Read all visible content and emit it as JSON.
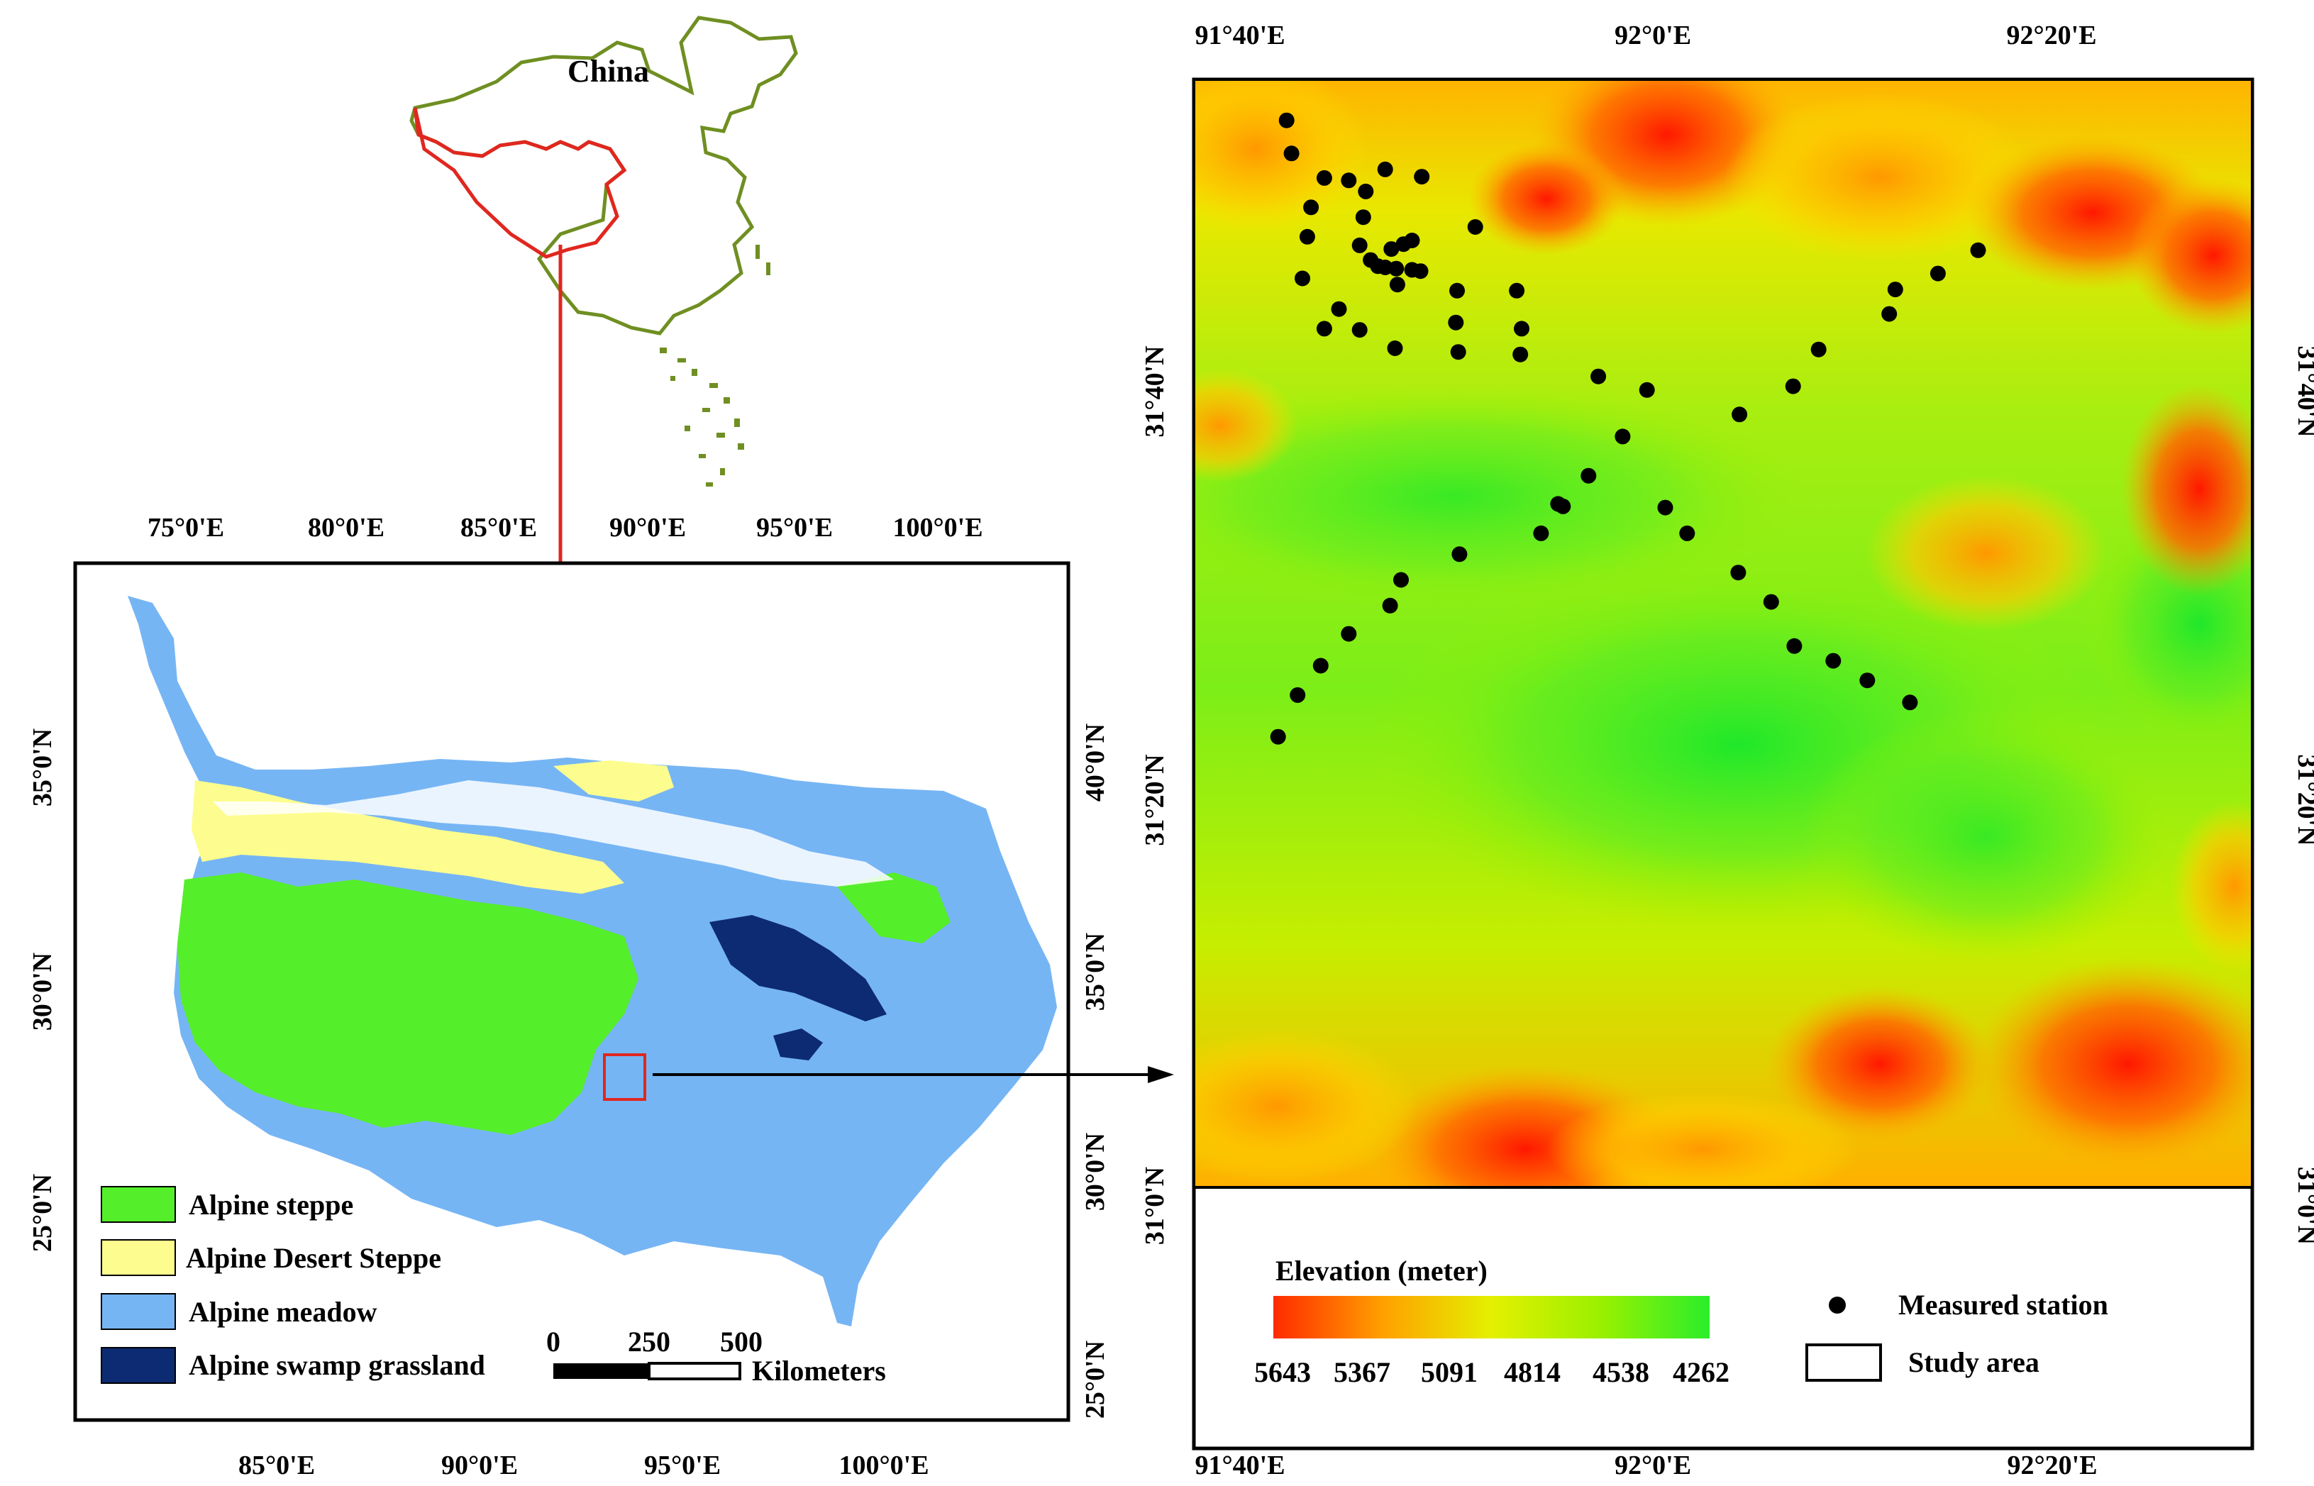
{
  "inset": {
    "country_label": "China",
    "region_outline_color": "#e0271f",
    "country_outline_color": "#6f8f22"
  },
  "overview_map": {
    "top_ticks": [
      "75°0'E",
      "80°0'E",
      "85°0'E",
      "90°0'E",
      "95°0'E",
      "100°0'E"
    ],
    "bottom_ticks": [
      "85°0'E",
      "90°0'E",
      "95°0'E",
      "100°0'E"
    ],
    "left_ticks": [
      "35°0'N",
      "30°0'N",
      "25°0'N"
    ],
    "right_ticks": [
      "40°0'N",
      "35°0'N",
      "30°0'N",
      "25°0'N"
    ],
    "legend": [
      {
        "label": "Alpine steppe",
        "color": "#55ee2a"
      },
      {
        "label": "Alpine Desert Steppe",
        "color": "#fdfd8f"
      },
      {
        "label": "Alpine meadow",
        "color": "#76b5f4"
      },
      {
        "label": "Alpine swamp grassland",
        "color": "#0d2b72"
      }
    ],
    "scale_bar": {
      "labels": [
        "0",
        "250",
        "500"
      ],
      "unit": "Kilometers"
    }
  },
  "study_map": {
    "top_ticks": [
      "91°40'E",
      "92°0'E",
      "92°20'E"
    ],
    "bottom_ticks": [
      "91°40'E",
      "92°0'E",
      "92°20'E"
    ],
    "left_ticks": [
      "31°40'N",
      "31°20'N",
      "31°0'N"
    ],
    "right_ticks": [
      "31°40'N",
      "31°20'N",
      "31°0'N"
    ],
    "elevation_legend": {
      "title": "Elevation (meter)",
      "values": [
        "5643",
        "5367",
        "5091",
        "4814",
        "4538",
        "4262"
      ],
      "colors": [
        "#ff2a00",
        "#ffa500",
        "#e6f000",
        "#9af000",
        "#2aee2a"
      ]
    },
    "symbol_legend": {
      "station_label": "Measured station",
      "study_area_label": "Study area"
    },
    "stations": [
      [
        91.705,
        31.888
      ],
      [
        91.709,
        31.861
      ],
      [
        91.725,
        31.817
      ],
      [
        91.736,
        31.841
      ],
      [
        91.722,
        31.793
      ],
      [
        91.718,
        31.759
      ],
      [
        91.756,
        31.839
      ],
      [
        91.768,
        31.809
      ],
      [
        91.77,
        31.83
      ],
      [
        91.786,
        31.848
      ],
      [
        91.816,
        31.842
      ],
      [
        91.765,
        31.786
      ],
      [
        91.774,
        31.774
      ],
      [
        91.786,
        31.768
      ],
      [
        91.795,
        31.767
      ],
      [
        91.791,
        31.783
      ],
      [
        91.801,
        31.787
      ],
      [
        91.808,
        31.79
      ],
      [
        91.796,
        31.754
      ],
      [
        91.78,
        31.769
      ],
      [
        91.808,
        31.766
      ],
      [
        91.815,
        31.765
      ],
      [
        91.845,
        31.749
      ],
      [
        91.86,
        31.801
      ],
      [
        91.894,
        31.749
      ],
      [
        91.748,
        31.734
      ],
      [
        91.736,
        31.718
      ],
      [
        91.765,
        31.717
      ],
      [
        91.794,
        31.702
      ],
      [
        91.844,
        31.723
      ],
      [
        91.846,
        31.699
      ],
      [
        91.898,
        31.718
      ],
      [
        91.897,
        31.697
      ],
      [
        91.961,
        31.679
      ],
      [
        92.001,
        31.668
      ],
      [
        92.077,
        31.648
      ],
      [
        91.981,
        31.63
      ],
      [
        92.121,
        31.671
      ],
      [
        92.142,
        31.701
      ],
      [
        92.2,
        31.73
      ],
      [
        92.205,
        31.75
      ],
      [
        92.24,
        31.763
      ],
      [
        92.273,
        31.782
      ],
      [
        91.953,
        31.598
      ],
      [
        91.928,
        31.575
      ],
      [
        91.932,
        31.573
      ],
      [
        92.016,
        31.572
      ],
      [
        91.914,
        31.551
      ],
      [
        91.847,
        31.534
      ],
      [
        92.034,
        31.551
      ],
      [
        92.076,
        31.519
      ],
      [
        92.103,
        31.495
      ],
      [
        92.122,
        31.459
      ],
      [
        92.154,
        31.447
      ],
      [
        91.799,
        31.513
      ],
      [
        91.79,
        31.492
      ],
      [
        91.756,
        31.469
      ],
      [
        91.733,
        31.443
      ],
      [
        91.714,
        31.419
      ],
      [
        91.698,
        31.385
      ],
      [
        92.182,
        31.431
      ],
      [
        92.217,
        31.413
      ]
    ]
  }
}
